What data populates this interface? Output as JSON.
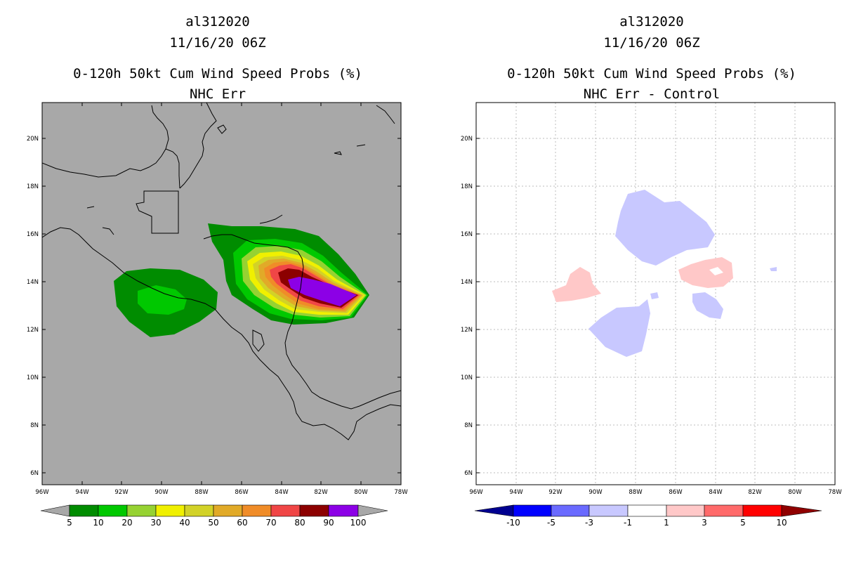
{
  "left_panel": {
    "storm_id": "al312020",
    "datetime": "11/16/20 06Z",
    "title": "0-120h 50kt Cum Wind Speed Probs (%)",
    "subtitle": "NHC Err",
    "colorbar_labels": [
      "5",
      "10",
      "20",
      "30",
      "40",
      "50",
      "60",
      "70",
      "80",
      "90",
      "100"
    ],
    "colors": {
      "background": "#a8a8a8",
      "c5": "#008c00",
      "c10": "#00c800",
      "c20": "#96d232",
      "c30": "#f0f000",
      "c40": "#d2d228",
      "c50": "#e1aa28",
      "c60": "#f08c28",
      "c70": "#f04646",
      "c80": "#8c0000",
      "c90": "#8c00e6"
    }
  },
  "right_panel": {
    "storm_id": "al312020",
    "datetime": "11/16/20 06Z",
    "title": "0-120h 50kt Cum Wind Speed Probs (%)",
    "subtitle": "NHC Err - Control",
    "colorbar_labels": [
      "-10",
      "-5",
      "-3",
      "-1",
      "1",
      "3",
      "5",
      "10"
    ],
    "colors": {
      "neg10": "#000090",
      "neg5": "#0000ff",
      "neg3": "#6a6aff",
      "neg1": "#c8c8ff",
      "zero": "#ffffff",
      "pos1": "#ffc8c8",
      "pos3": "#ff6a6a",
      "pos5": "#ff0000",
      "pos10": "#900000"
    }
  },
  "axes": {
    "lat_labels": [
      "20N",
      "18N",
      "16N",
      "14N",
      "12N",
      "10N",
      "8N",
      "6N"
    ],
    "lon_labels": [
      "96W",
      "94W",
      "92W",
      "90W",
      "88W",
      "86W",
      "84W",
      "82W",
      "80W",
      "78W"
    ]
  }
}
